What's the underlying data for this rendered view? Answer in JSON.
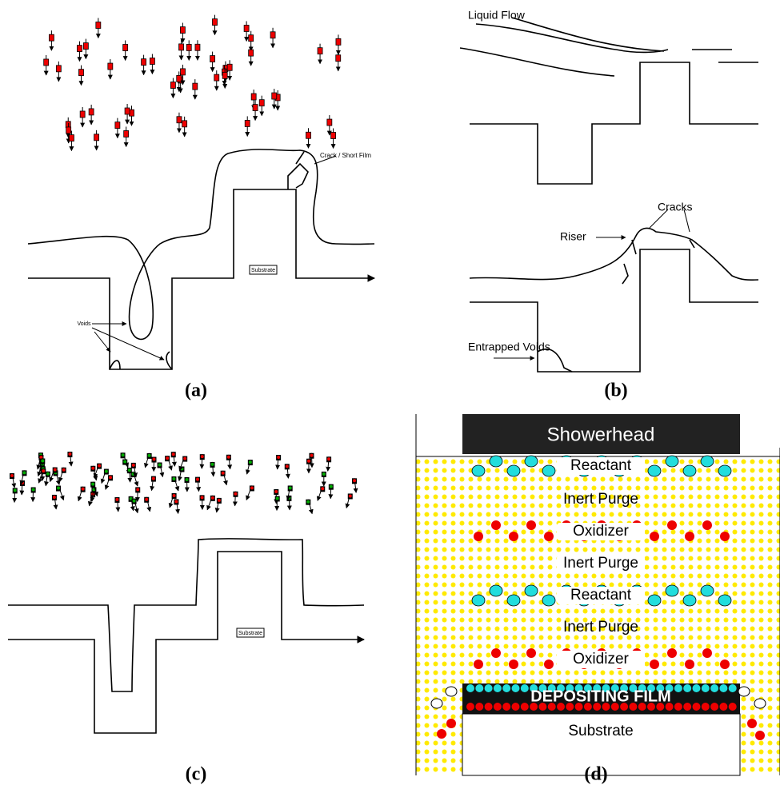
{
  "panels": [
    {
      "caption": "(a)",
      "labels": [
        "Crack / Short Film",
        "Substrate",
        "Voids"
      ]
    },
    {
      "caption": "(b)",
      "labels": [
        "Liquid Flow",
        "Riser",
        "Cracks",
        "Entrapped Voids"
      ]
    },
    {
      "caption": "(c)",
      "labels": [
        "Substrate"
      ]
    },
    {
      "caption": "(d)",
      "showerhead": "Showerhead",
      "layers": [
        "Reactant",
        "Inert Purge",
        "Oxidizer",
        "Inert Purge",
        "Reactant",
        "Inert Purge",
        "Oxidizer"
      ],
      "film": "DEPOSITING FILM",
      "substrate": "Substrate"
    }
  ]
}
